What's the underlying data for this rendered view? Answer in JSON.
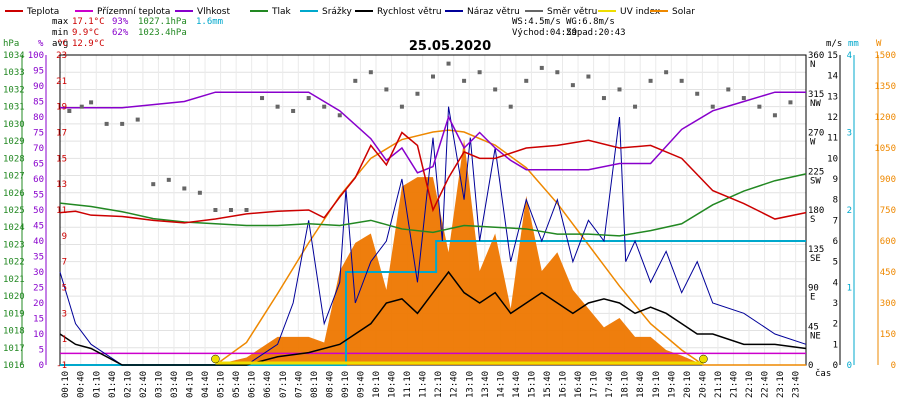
{
  "chart_data": {
    "type": "line",
    "title": "25.05.2020",
    "legend": [
      {
        "name": "Teplota",
        "color": "#cc0000"
      },
      {
        "name": "Přízemní teplota",
        "color": "#cc00cc"
      },
      {
        "name": "Vlhkost",
        "color": "#8800cc"
      },
      {
        "name": "Tlak",
        "color": "#228822"
      },
      {
        "name": "Srážky",
        "color": "#00a8cc"
      },
      {
        "name": "Rychlost větru",
        "color": "#000000"
      },
      {
        "name": "Náraz větru",
        "color": "#000099"
      },
      {
        "name": "Směr větru",
        "color": "#666666"
      },
      {
        "name": "UV index",
        "color": "#eedd00"
      },
      {
        "name": "Solar",
        "color": "#ee8800"
      }
    ],
    "stats": {
      "max": {
        "label": "max",
        "temp": "17.1°C",
        "hum": "93%",
        "press": "1027.1hPa",
        "rain": "1.6mm"
      },
      "min": {
        "label": "min",
        "temp": "9.9°C",
        "hum": "62%",
        "press": "1023.4hPa"
      },
      "avg": {
        "label": "avg",
        "temp": "12.9°C"
      }
    },
    "wind_info": {
      "ws": "WS:4.5m/s",
      "wg": "WG:6.8m/s",
      "sunrise": "Východ:04:59",
      "sunset": "Západ:20:43"
    },
    "axes": {
      "hpa": {
        "unit": "hPa",
        "ticks": [
          "1034",
          "1033",
          "1032",
          "1031",
          "1030",
          "1029",
          "1028",
          "1027",
          "1026",
          "1025",
          "1024",
          "1023",
          "1022",
          "1021",
          "1020",
          "1019",
          "1018",
          "1017",
          "1016"
        ],
        "range": [
          1016,
          1034
        ]
      },
      "pct": {
        "unit": "%",
        "ticks": [
          "100",
          "95",
          "90",
          "85",
          "80",
          "75",
          "70",
          "65",
          "60",
          "55",
          "50",
          "45",
          "40",
          "35",
          "30",
          "25",
          "20",
          "15",
          "10",
          "5",
          "0"
        ],
        "range": [
          0,
          100
        ]
      },
      "temp": {
        "unit": "°C",
        "ticks": [
          "23",
          "21",
          "19",
          "17",
          "15",
          "13",
          "11",
          "9",
          "7",
          "5",
          "3",
          "1",
          "-1"
        ],
        "range": [
          -1,
          23
        ]
      },
      "dir": {
        "ticks": [
          {
            "deg": "360",
            "dir": "N"
          },
          {
            "deg": "315",
            "dir": "NW"
          },
          {
            "deg": "270",
            "dir": "W"
          },
          {
            "deg": "225",
            "dir": "SW"
          },
          {
            "deg": "180",
            "dir": "S"
          },
          {
            "deg": "135",
            "dir": "SE"
          },
          {
            "deg": "90",
            "dir": "E"
          },
          {
            "deg": "45",
            "dir": "NE"
          },
          {
            "deg": "0",
            "dir": ""
          }
        ]
      },
      "ms": {
        "unit": "m/s",
        "ticks": [
          "15",
          "14",
          "13",
          "12",
          "11",
          "10",
          "9",
          "8",
          "7",
          "6",
          "5",
          "4",
          "3",
          "2",
          "1",
          "0"
        ],
        "range": [
          0,
          15
        ]
      },
      "mm": {
        "unit": "mm",
        "ticks": [
          "4",
          "3",
          "2",
          "1",
          "0"
        ],
        "range": [
          0,
          4
        ]
      },
      "w": {
        "unit": "W",
        "ticks": [
          "1500",
          "1350",
          "1200",
          "1050",
          "900",
          "750",
          "600",
          "450",
          "300",
          "150",
          "0"
        ],
        "range": [
          0,
          1650
        ]
      },
      "x": {
        "label": "čas",
        "ticks": [
          "00:10",
          "00:40",
          "01:10",
          "01:40",
          "02:10",
          "02:40",
          "03:10",
          "03:40",
          "04:10",
          "04:40",
          "05:10",
          "05:40",
          "06:10",
          "06:40",
          "07:10",
          "07:40",
          "08:10",
          "08:40",
          "09:10",
          "09:40",
          "10:10",
          "10:40",
          "11:10",
          "11:40",
          "12:10",
          "12:40",
          "13:10",
          "13:40",
          "14:10",
          "14:40",
          "15:10",
          "15:40",
          "16:10",
          "16:40",
          "17:10",
          "17:40",
          "18:10",
          "18:40",
          "19:10",
          "19:40",
          "20:10",
          "20:40",
          "21:10",
          "21:40",
          "22:10",
          "22:40",
          "23:10",
          "23:40"
        ]
      }
    },
    "series": {
      "temperature": {
        "name": "Teplota",
        "unit": "°C",
        "x": [
          0,
          0.5,
          1,
          2,
          3,
          4,
          5,
          6,
          7,
          8,
          8.5,
          9,
          9.5,
          10,
          10.5,
          11,
          11.5,
          12,
          12.5,
          13,
          13.5,
          14,
          15,
          16,
          17,
          18,
          19,
          20,
          21,
          22,
          23,
          24
        ],
        "y": [
          10.8,
          10.9,
          10.6,
          10.5,
          10.2,
          10.0,
          10.3,
          10.7,
          10.9,
          11.0,
          10.4,
          12.0,
          13.5,
          16.0,
          14.5,
          17.0,
          16.0,
          11.0,
          13.5,
          15.5,
          15.0,
          15.0,
          15.8,
          16.0,
          16.4,
          15.8,
          16.0,
          15.0,
          12.5,
          11.5,
          10.3,
          10.8
        ]
      },
      "ground_temperature": {
        "name": "Přízemní teplota",
        "unit": "°C",
        "x": [
          0,
          24
        ],
        "y": [
          -0.1,
          -0.1
        ]
      },
      "humidity": {
        "name": "Vlhkost",
        "unit": "%",
        "x": [
          0,
          0.5,
          1,
          2,
          3,
          4,
          5,
          6,
          7,
          8,
          9,
          10,
          10.5,
          11,
          11.5,
          12,
          12.5,
          13,
          13.5,
          14,
          14.5,
          15,
          16,
          17,
          18,
          19,
          20,
          21,
          22,
          23,
          24
        ],
        "y": [
          83,
          83,
          83,
          83,
          84,
          85,
          88,
          88,
          88,
          88,
          82,
          73,
          66,
          70,
          62,
          64,
          80,
          70,
          75,
          70,
          66,
          63,
          63,
          63,
          65,
          65,
          76,
          82,
          85,
          88,
          88
        ]
      },
      "pressure": {
        "name": "Tlak",
        "unit": "hPa",
        "x": [
          0,
          1,
          2,
          3,
          4,
          5,
          6,
          7,
          8,
          9,
          10,
          11,
          12,
          13,
          14,
          15,
          16,
          17,
          18,
          19,
          20,
          21,
          22,
          23,
          24
        ],
        "y": [
          1025.4,
          1025.2,
          1024.9,
          1024.5,
          1024.3,
          1024.2,
          1024.1,
          1024.1,
          1024.2,
          1024.1,
          1024.4,
          1023.9,
          1023.7,
          1024.1,
          1024.0,
          1023.9,
          1023.6,
          1023.6,
          1023.5,
          1023.8,
          1024.2,
          1025.3,
          1026.1,
          1026.7,
          1027.1
        ]
      },
      "rain": {
        "name": "Srážky",
        "unit": "mm",
        "x": [
          0,
          9.2,
          9.2,
          12.1,
          12.1,
          24
        ],
        "y": [
          0,
          0,
          1.2,
          1.2,
          1.6,
          1.6
        ]
      },
      "wind_speed": {
        "name": "Rychlost větru",
        "unit": "m/s",
        "x": [
          0,
          0.5,
          1,
          2,
          3,
          4,
          5,
          6,
          7,
          8,
          9,
          10,
          10.5,
          11,
          11.5,
          12,
          12.5,
          13,
          13.5,
          14,
          14.5,
          15,
          15.5,
          16,
          16.5,
          17,
          17.5,
          18,
          18.5,
          19,
          19.5,
          20,
          20.5,
          21,
          22,
          23,
          24
        ],
        "y": [
          1.5,
          1.0,
          0.8,
          0,
          0,
          0,
          0,
          0,
          0.4,
          0.6,
          1.0,
          2.0,
          3.0,
          3.2,
          2.5,
          3.5,
          4.5,
          3.5,
          3.0,
          3.5,
          2.5,
          3.0,
          3.5,
          3.0,
          2.5,
          3.0,
          3.2,
          3.0,
          2.5,
          2.8,
          2.5,
          2.0,
          1.5,
          1.5,
          1.0,
          1.0,
          0.8
        ]
      },
      "wind_gust": {
        "name": "Náraz větru",
        "unit": "m/s",
        "x": [
          0,
          0.5,
          1,
          2,
          3,
          4,
          5,
          6,
          7,
          7.5,
          8,
          8.5,
          9,
          9.2,
          9.5,
          10,
          10.5,
          11,
          11.5,
          12,
          12.3,
          12.5,
          13,
          13.2,
          13.5,
          14,
          14.5,
          15,
          15.5,
          16,
          16.5,
          17,
          17.5,
          18,
          18.2,
          18.5,
          19,
          19.5,
          20,
          20.5,
          21,
          22,
          23,
          24
        ],
        "y": [
          4.5,
          2.0,
          1.0,
          0,
          0,
          0,
          0,
          0,
          1.0,
          3.0,
          7.0,
          2.0,
          4.0,
          8.5,
          3.0,
          5.0,
          6.0,
          9.0,
          4.0,
          11.0,
          6.0,
          12.5,
          8.0,
          11.0,
          6.0,
          10.5,
          5.0,
          8.0,
          6.0,
          8.0,
          5.0,
          7.0,
          6.0,
          12.0,
          5.0,
          6.0,
          4.0,
          5.5,
          3.5,
          5.0,
          3.0,
          2.5,
          1.5,
          1.0
        ]
      },
      "wind_direction": {
        "name": "Směr větru",
        "unit": "°",
        "x": [
          0.3,
          0.7,
          1,
          1.5,
          2,
          2.5,
          3,
          3.5,
          4,
          4.5,
          5,
          5.5,
          6,
          6.5,
          7,
          7.5,
          8,
          8.5,
          9,
          9.5,
          10,
          10.5,
          11,
          11.5,
          12,
          12.5,
          13,
          13.5,
          14,
          14.5,
          15,
          15.5,
          16,
          16.5,
          17,
          17.5,
          18,
          18.5,
          19,
          19.5,
          20,
          20.5,
          21,
          21.5,
          22,
          22.5,
          23,
          23.5
        ],
        "y": [
          295,
          300,
          305,
          280,
          280,
          285,
          210,
          215,
          205,
          200,
          180,
          180,
          180,
          310,
          300,
          295,
          310,
          300,
          290,
          330,
          340,
          320,
          300,
          315,
          335,
          350,
          330,
          340,
          320,
          300,
          330,
          345,
          340,
          325,
          335,
          310,
          320,
          300,
          330,
          340,
          330,
          315,
          300,
          320,
          310,
          300,
          290,
          305
        ]
      },
      "uv_index": {
        "name": "UV index",
        "x": [
          0,
          5.0,
          20.7,
          24
        ],
        "y": [
          0,
          0.3,
          0.3,
          0
        ]
      },
      "solar": {
        "name": "Solar",
        "unit": "W",
        "x": [
          0,
          5,
          6,
          7,
          8,
          9,
          10,
          11,
          12,
          12.5,
          13,
          14,
          15,
          16,
          17,
          18,
          19,
          20,
          20.7,
          24
        ],
        "y": [
          0,
          0,
          120,
          380,
          650,
          900,
          1100,
          1200,
          1240,
          1250,
          1240,
          1170,
          1050,
          860,
          640,
          420,
          220,
          80,
          0,
          0
        ]
      },
      "solar_measured": {
        "name": "Solar",
        "unit": "W",
        "x": [
          5,
          6,
          7,
          8,
          8.5,
          9,
          9.5,
          10,
          10.5,
          11,
          11.5,
          12,
          12.5,
          13,
          13.5,
          14,
          14.5,
          15,
          15.5,
          16,
          16.5,
          17,
          17.5,
          18,
          18.5,
          19,
          19.5,
          20,
          20.7
        ],
        "y": [
          0,
          40,
          150,
          150,
          120,
          500,
          650,
          700,
          400,
          950,
          1000,
          1000,
          600,
          1200,
          500,
          700,
          300,
          900,
          500,
          600,
          400,
          300,
          200,
          250,
          150,
          150,
          80,
          50,
          0
        ]
      }
    }
  }
}
